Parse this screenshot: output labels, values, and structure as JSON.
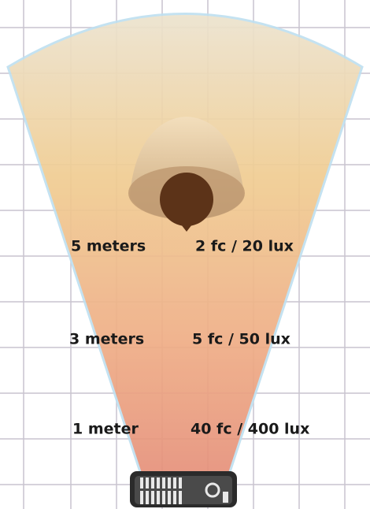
{
  "rows": [
    {
      "distance": "5 meters",
      "illuminance": "2 fc / 20 lux"
    },
    {
      "distance": "3 meters",
      "illuminance": "5 fc / 50 lux"
    },
    {
      "distance": "1 meter",
      "illuminance": "40 fc / 400 lux"
    }
  ]
}
